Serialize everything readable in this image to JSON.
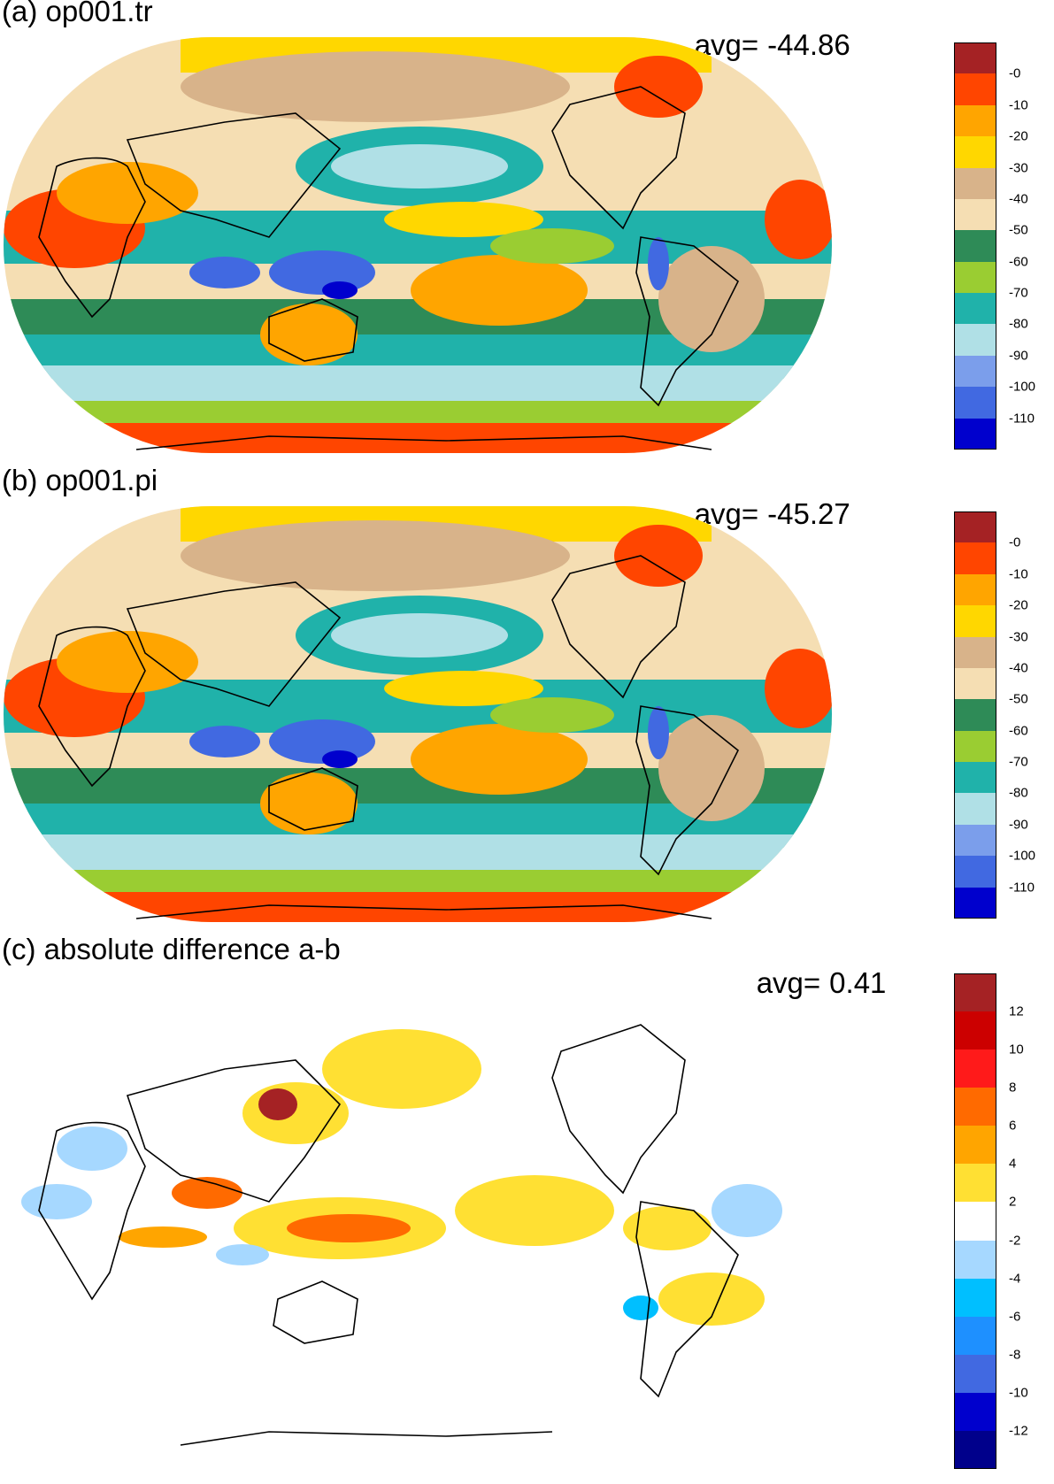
{
  "panels": [
    {
      "title": "(a) op001.tr",
      "avg_label": "avg=",
      "avg_value": "-44.86",
      "colorbar": {
        "colors": [
          "#a52224",
          "#ff4500",
          "#ffa500",
          "#ffd700",
          "#d8b38a",
          "#f5deb3",
          "#2e8b57",
          "#9acd32",
          "#20b2aa",
          "#b0e0e6",
          "#7b9eeb",
          "#4169e1",
          "#0000cd"
        ],
        "ticks": [
          "-0",
          "-10",
          "-20",
          "-30",
          "-40",
          "-50",
          "-60",
          "-70",
          "-80",
          "-90",
          "-100",
          "-110"
        ]
      }
    },
    {
      "title": "(b) op001.pi",
      "avg_label": "avg=",
      "avg_value": "-45.27",
      "colorbar": {
        "colors": [
          "#a52224",
          "#ff4500",
          "#ffa500",
          "#ffd700",
          "#d8b38a",
          "#f5deb3",
          "#2e8b57",
          "#9acd32",
          "#20b2aa",
          "#b0e0e6",
          "#7b9eeb",
          "#4169e1",
          "#0000cd"
        ],
        "ticks": [
          "-0",
          "-10",
          "-20",
          "-30",
          "-40",
          "-50",
          "-60",
          "-70",
          "-80",
          "-90",
          "-100",
          "-110"
        ]
      }
    },
    {
      "title": "(c) absolute difference a-b",
      "avg_label": "avg=",
      "avg_value": "0.41",
      "colorbar": {
        "colors": [
          "#a52224",
          "#cc0000",
          "#ff1a1a",
          "#ff6a00",
          "#ffa500",
          "#ffe033",
          "#ffffff",
          "#a6d8ff",
          "#00bfff",
          "#1e90ff",
          "#4169e1",
          "#0000cd",
          "#00008b"
        ],
        "ticks": [
          "12",
          "10",
          "8",
          "6",
          "4",
          "2",
          "-2",
          "-4",
          "-6",
          "-8",
          "-10",
          "-12"
        ]
      }
    }
  ]
}
